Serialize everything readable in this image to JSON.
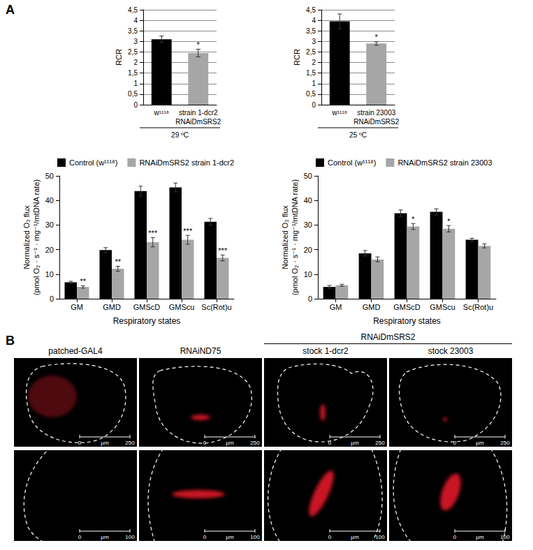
{
  "panel_labels": [
    "A",
    "B"
  ],
  "chart_data": [
    {
      "type": "bar",
      "caption": "29 ºC",
      "y_label": "RCR",
      "categories": [
        "w¹¹¹⁸",
        "strain 1-dcr2"
      ],
      "group_label": "RNAiDmSRS2",
      "values": [
        3.1,
        2.45
      ],
      "errors": [
        0.15,
        0.18
      ],
      "significance": [
        null,
        "*"
      ],
      "colors": [
        "#000000",
        "#a6a6a6"
      ],
      "ylim": [
        0,
        4.5
      ],
      "yticks": [
        0,
        {
          "value": 0.5,
          "label": "0,5"
        },
        1,
        {
          "value": 1.5,
          "label": "1,5"
        },
        2,
        {
          "value": 2.5,
          "label": "2,5"
        },
        3,
        {
          "value": 3.5,
          "label": "3,5"
        },
        4,
        {
          "value": 4.5,
          "label": "4,5"
        }
      ],
      "grid": true
    },
    {
      "type": "bar",
      "caption": "25 ºC",
      "y_label": "RCR",
      "categories": [
        "w¹¹¹⁸",
        "strain 23003"
      ],
      "group_label": "RNAiDmSRS2",
      "values": [
        3.95,
        2.9
      ],
      "errors": [
        0.35,
        0.08
      ],
      "significance": [
        null,
        "*"
      ],
      "colors": [
        "#000000",
        "#a6a6a6"
      ],
      "ylim": [
        0,
        4.5
      ],
      "yticks": [
        0,
        {
          "value": 0.5,
          "label": "0,5"
        },
        1,
        {
          "value": 1.5,
          "label": "1,5"
        },
        2,
        {
          "value": 2.5,
          "label": "2,5"
        },
        3,
        {
          "value": 3.5,
          "label": "3,5"
        },
        4,
        {
          "value": 4.5,
          "label": "4,5"
        }
      ],
      "grid": true
    },
    {
      "type": "bar",
      "x_label": "Respiratory states",
      "y_label": "Normalized O₂ flux\n(pmol O₂ · s⁻¹ · mg⁻¹/mtDNA rate)",
      "categories": [
        "GM",
        "GMD",
        "GMScD",
        "GMScu",
        "Sc(Rot)u"
      ],
      "series": [
        {
          "name": "Control (w¹¹¹⁸)",
          "color": "#000000",
          "values": [
            6.7,
            19.8,
            43.8,
            45.3,
            31.3
          ],
          "errors": [
            0.4,
            1.0,
            2.0,
            1.8,
            1.4
          ],
          "significance": [
            null,
            null,
            null,
            null,
            null
          ]
        },
        {
          "name": "RNAiDmSRS2 strain 1-dcr2",
          "color": "#a6a6a6",
          "values": [
            4.8,
            12.2,
            23.0,
            24.0,
            16.6
          ],
          "errors": [
            0.5,
            1.0,
            1.9,
            1.8,
            1.2
          ],
          "significance": [
            "**",
            "**",
            "***",
            "***",
            "***"
          ]
        }
      ],
      "ylim": [
        0,
        50
      ],
      "yticks": [
        0,
        10,
        20,
        30,
        40,
        50
      ],
      "grid": false,
      "legend": "top"
    },
    {
      "type": "bar",
      "x_label": "Respiratory states",
      "y_label": "Normalized O₂ flux\n(pmol O₂ · s⁻¹ · mg⁻¹/mtDNA rate)",
      "categories": [
        "GM",
        "GMD",
        "GMScD",
        "GMScu",
        "Sc(Rot)u"
      ],
      "series": [
        {
          "name": "Control (w¹¹¹⁸)",
          "color": "#000000",
          "values": [
            4.8,
            18.5,
            34.8,
            35.4,
            24.0
          ],
          "errors": [
            0.6,
            1.1,
            1.3,
            1.2,
            0.6
          ],
          "significance": [
            null,
            null,
            null,
            null,
            null
          ]
        },
        {
          "name": "RNAiDmSRS2 strain 23003",
          "color": "#a6a6a6",
          "values": [
            5.5,
            16.0,
            29.4,
            28.5,
            21.5
          ],
          "errors": [
            0.4,
            1.0,
            1.2,
            1.3,
            0.8
          ],
          "significance": [
            null,
            null,
            "*",
            "*",
            null
          ]
        }
      ],
      "ylim": [
        0,
        50
      ],
      "yticks": [
        0,
        10,
        20,
        30,
        40,
        50
      ],
      "grid": false,
      "legend": "top"
    }
  ],
  "panel_b": {
    "group_label": "RNAiDmSRS2",
    "columns": [
      "patched-GAL4",
      "RNAiND75",
      "stock 1-dcr2",
      "stock 23003"
    ],
    "scale_bars": [
      {
        "start": 0,
        "unit": "µm",
        "end": 250
      },
      {
        "start": 0,
        "unit": "µm",
        "end": 100
      }
    ]
  }
}
